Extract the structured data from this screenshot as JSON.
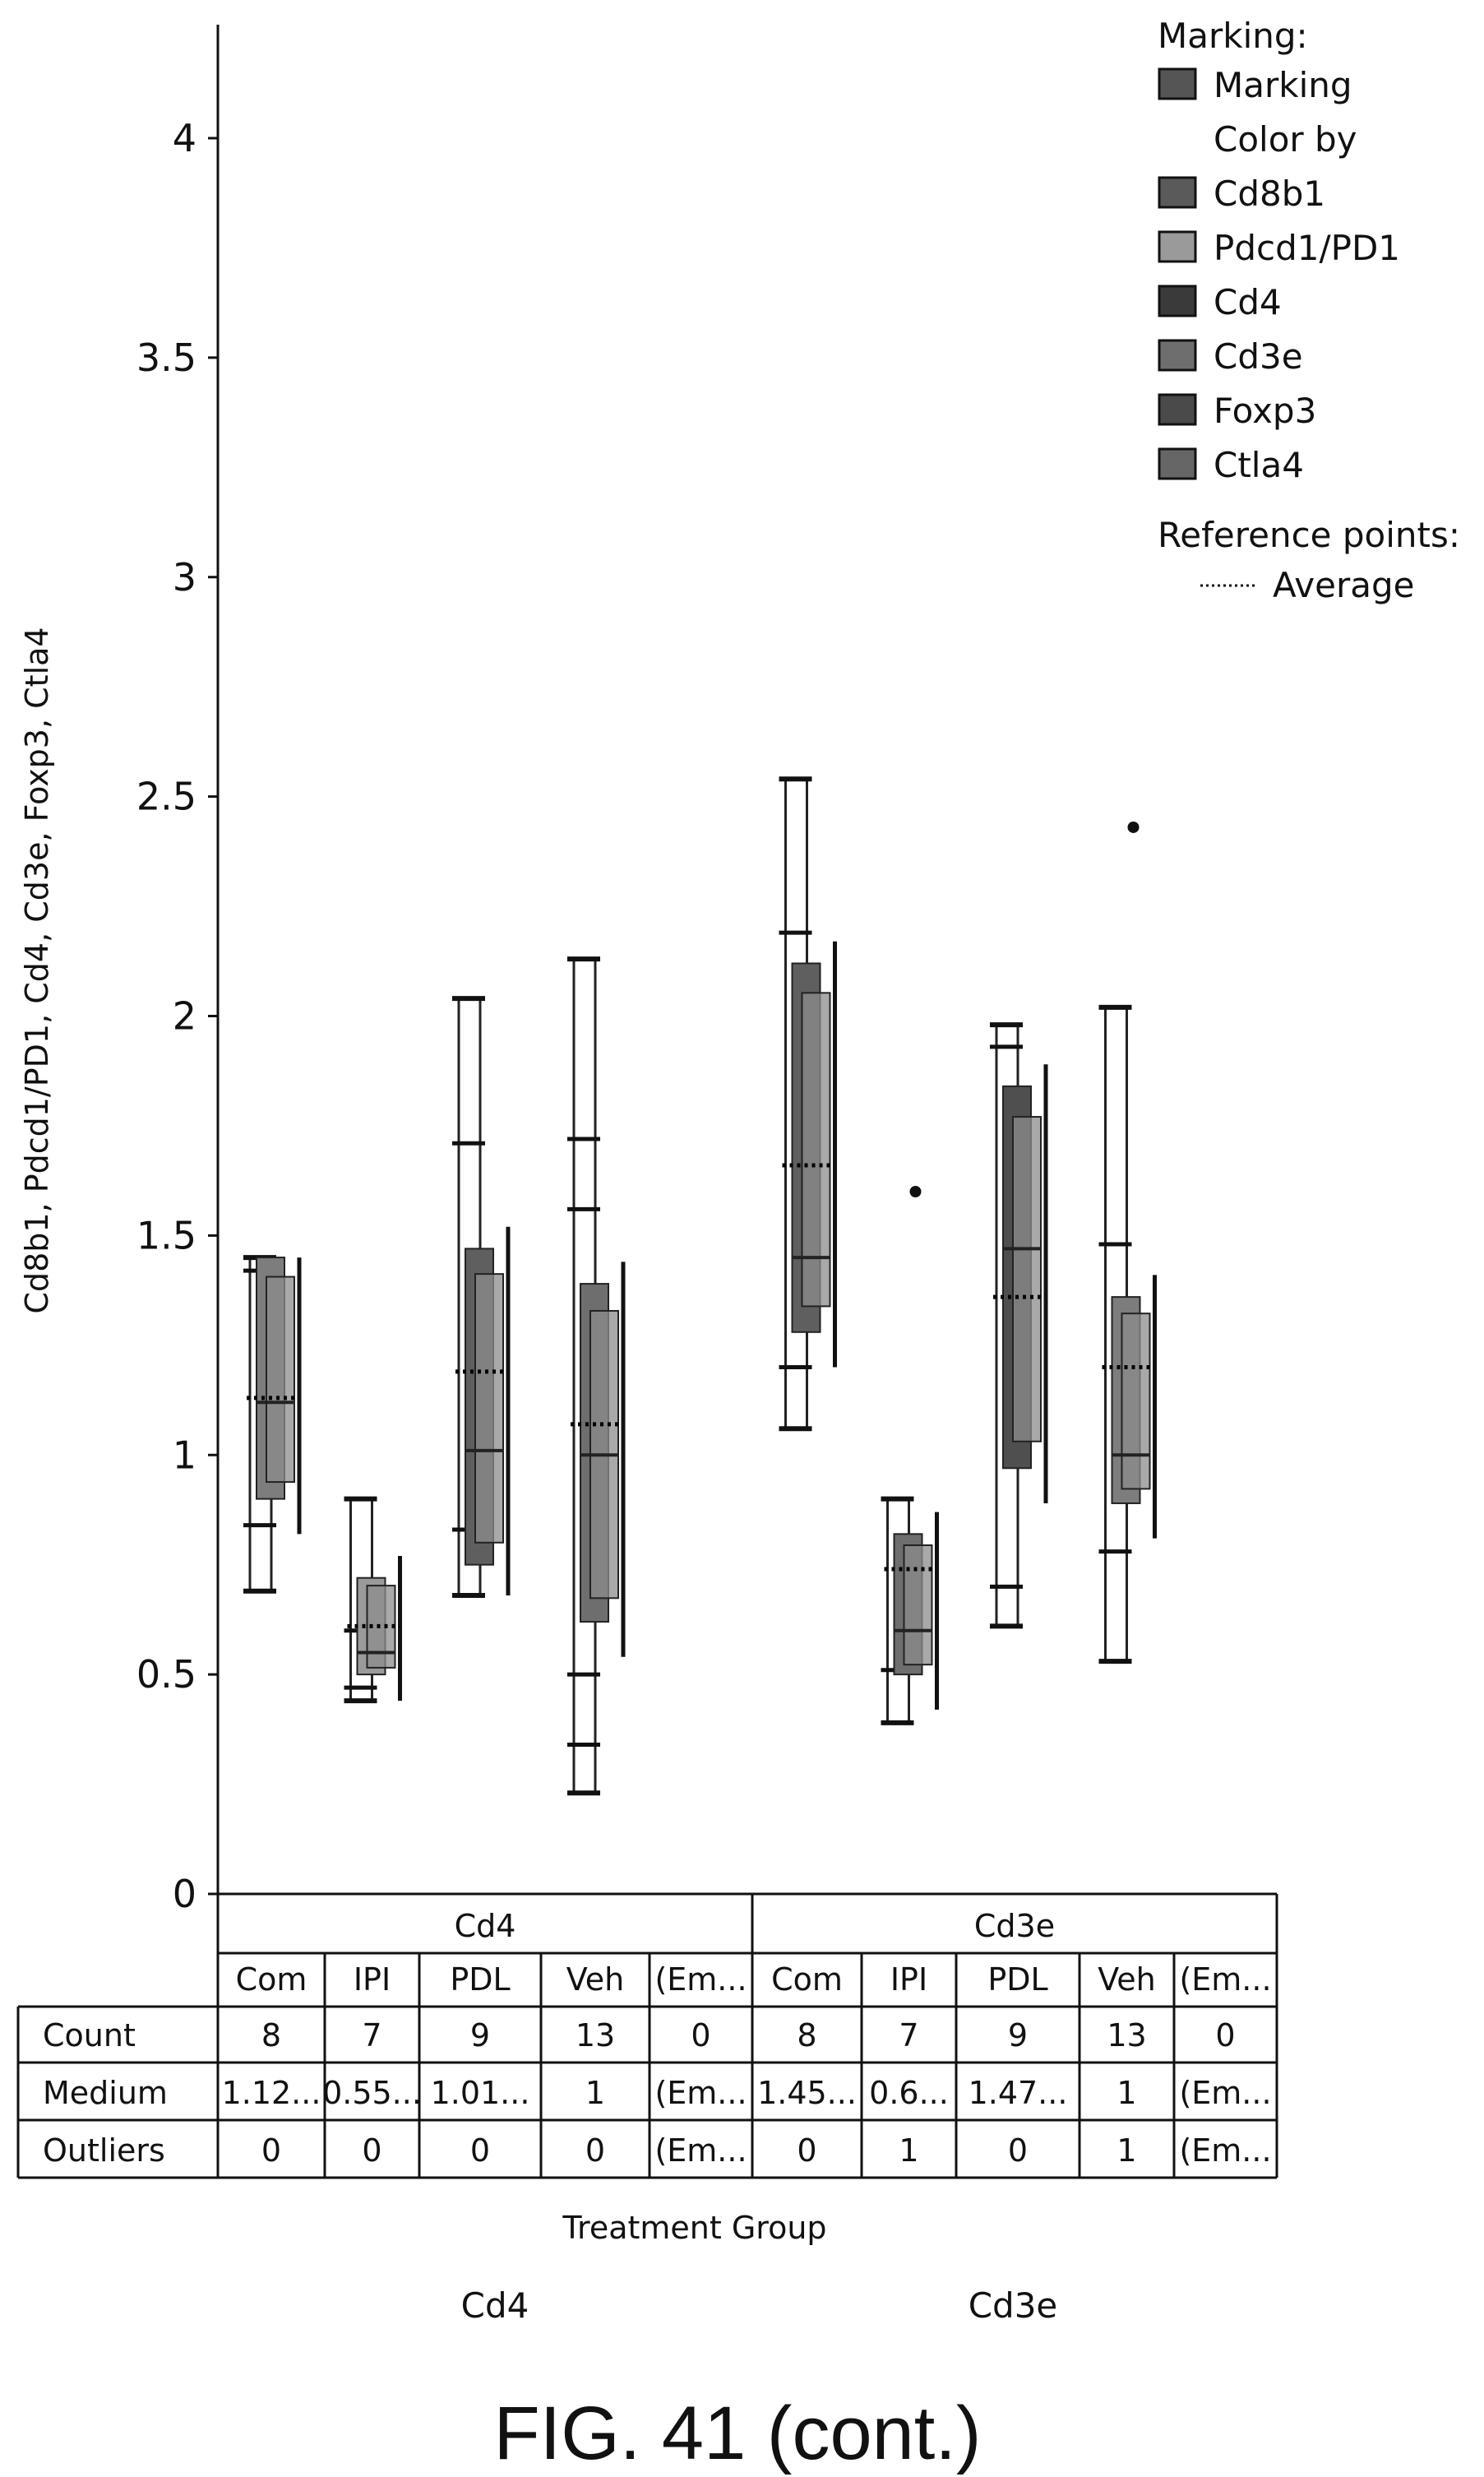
{
  "chart_data": {
    "type": "box",
    "y_label": "Cd8b1, Pdcd1/PD1, Cd4, Cd3e, Foxp3, Ctla4",
    "x_label": "Treatment Group",
    "ylim": [
      0,
      4.3
    ],
    "y_ticks": [
      "4",
      "3.5",
      "3",
      "2.5",
      "2",
      "1.5",
      "1",
      "0.5",
      "0"
    ],
    "legend": {
      "title": "Marking:",
      "items": [
        {
          "label": "Marking",
          "color": "#555555"
        },
        {
          "label": "Color by",
          "color": null
        },
        {
          "label": "Cd8b1",
          "color": "#5a5a5a"
        },
        {
          "label": "Pdcd1/PD1",
          "color": "#9a9a9a"
        },
        {
          "label": "Cd4",
          "color": "#3a3a3a"
        },
        {
          "label": "Cd3e",
          "color": "#6e6e6e"
        },
        {
          "label": "Foxp3",
          "color": "#4a4a4a"
        },
        {
          "label": "Ctla4",
          "color": "#666666"
        }
      ],
      "ref_title": "Reference points:",
      "ref_item": "Average"
    },
    "groups": [
      {
        "name": "Cd4",
        "categories": [
          {
            "label": "Com",
            "count": "8",
            "medium": "1.12...",
            "outliers": "0",
            "whisker": [
              0.69,
              1.45
            ],
            "box": [
              0.9,
              1.45
            ],
            "median": 1.12,
            "mean": 1.13,
            "ticks": [
              0.84,
              1.42
            ],
            "outlier_points": []
          },
          {
            "label": "IPI",
            "count": "7",
            "medium": "0.55...",
            "outliers": "0",
            "whisker": [
              0.44,
              0.9
            ],
            "box": [
              0.5,
              0.72
            ],
            "median": 0.55,
            "mean": 0.61,
            "ticks": [
              0.47,
              0.6
            ],
            "outlier_points": []
          },
          {
            "label": "PDL",
            "count": "9",
            "medium": "1.01...",
            "outliers": "0",
            "whisker": [
              0.68,
              2.04
            ],
            "box": [
              0.75,
              1.47
            ],
            "median": 1.01,
            "mean": 1.19,
            "ticks": [
              1.71,
              0.83
            ],
            "outlier_points": []
          },
          {
            "label": "Veh",
            "count": "13",
            "medium": "1",
            "outliers": "0",
            "whisker": [
              0.23,
              2.13
            ],
            "box": [
              0.62,
              1.39
            ],
            "median": 1.0,
            "mean": 1.07,
            "ticks": [
              0.34,
              0.5,
              1.56,
              1.72
            ],
            "outlier_points": []
          },
          {
            "label": "(Em...",
            "count": "0",
            "medium": "(Em...",
            "outliers": "(Em...",
            "whisker": null,
            "box": null,
            "median": null,
            "mean": null,
            "ticks": [],
            "outlier_points": []
          }
        ]
      },
      {
        "name": "Cd3e",
        "categories": [
          {
            "label": "Com",
            "count": "8",
            "medium": "1.45...",
            "outliers": "0",
            "whisker": [
              1.06,
              2.54
            ],
            "box": [
              1.28,
              2.12
            ],
            "median": 1.45,
            "mean": 1.66,
            "ticks": [
              1.2,
              2.19
            ],
            "outlier_points": []
          },
          {
            "label": "IPI",
            "count": "7",
            "medium": "0.6...",
            "outliers": "1",
            "whisker": [
              0.39,
              0.9
            ],
            "box": [
              0.5,
              0.82
            ],
            "median": 0.6,
            "mean": 0.74,
            "ticks": [
              0.51
            ],
            "outlier_points": [
              1.6
            ]
          },
          {
            "label": "PDL",
            "count": "9",
            "medium": "1.47...",
            "outliers": "0",
            "whisker": [
              0.61,
              1.98
            ],
            "box": [
              0.97,
              1.84
            ],
            "median": 1.47,
            "mean": 1.36,
            "ticks": [
              0.7,
              1.93
            ],
            "outlier_points": []
          },
          {
            "label": "Veh",
            "count": "13",
            "medium": "1",
            "outliers": "1",
            "whisker": [
              0.53,
              2.02
            ],
            "box": [
              0.89,
              1.36
            ],
            "median": 1.0,
            "mean": 1.2,
            "ticks": [
              0.78,
              1.48
            ],
            "outlier_points": [
              2.43
            ]
          },
          {
            "label": "(Em...",
            "count": "0",
            "medium": "(Em...",
            "outliers": "(Em...",
            "whisker": null,
            "box": null,
            "median": null,
            "mean": null,
            "ticks": [],
            "outlier_points": []
          }
        ]
      }
    ],
    "table_rows": [
      {
        "key": "count",
        "label": "Count"
      },
      {
        "key": "medium",
        "label": "Medium"
      },
      {
        "key": "outliers",
        "label": "Outliers"
      }
    ],
    "bottom_labels": [
      "Cd4",
      "Cd3e"
    ]
  },
  "caption": "FIG. 41 (cont.)"
}
